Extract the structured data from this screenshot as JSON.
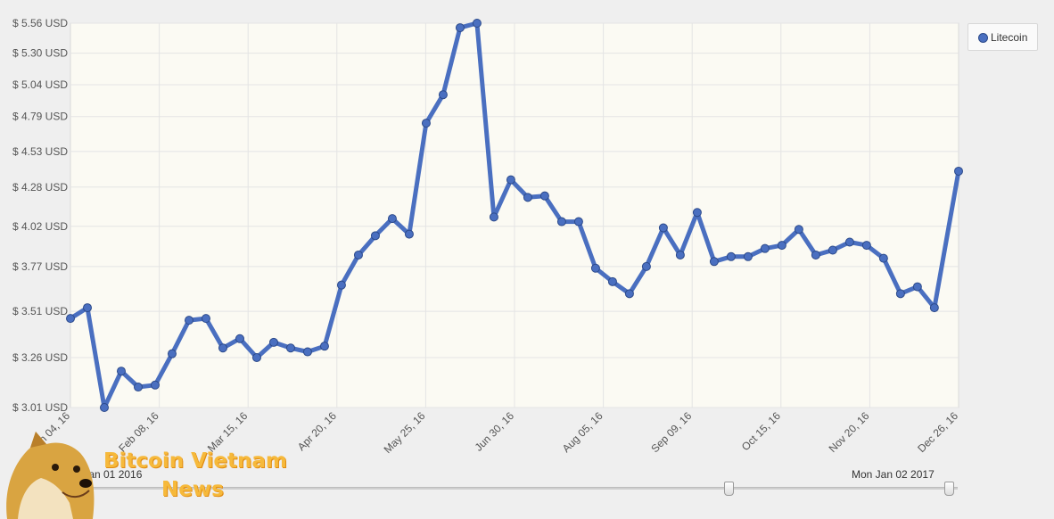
{
  "chart_data": {
    "type": "line",
    "x": [
      "2016-01-01",
      "2016-01-08",
      "2016-01-15",
      "2016-01-22",
      "2016-01-29",
      "2016-02-05",
      "2016-02-12",
      "2016-02-19",
      "2016-02-26",
      "2016-03-04",
      "2016-03-11",
      "2016-03-18",
      "2016-03-25",
      "2016-04-01",
      "2016-04-08",
      "2016-04-15",
      "2016-04-22",
      "2016-04-29",
      "2016-05-06",
      "2016-05-13",
      "2016-05-20",
      "2016-05-27",
      "2016-06-03",
      "2016-06-10",
      "2016-06-17",
      "2016-06-24",
      "2016-07-01",
      "2016-07-08",
      "2016-07-15",
      "2016-07-22",
      "2016-07-29",
      "2016-08-05",
      "2016-08-12",
      "2016-08-19",
      "2016-08-26",
      "2016-09-02",
      "2016-09-09",
      "2016-09-16",
      "2016-09-23",
      "2016-09-30",
      "2016-10-07",
      "2016-10-14",
      "2016-10-21",
      "2016-10-28",
      "2016-11-04",
      "2016-11-11",
      "2016-11-18",
      "2016-11-25",
      "2016-12-02",
      "2016-12-09",
      "2016-12-16",
      "2016-12-23",
      "2017-01-02"
    ],
    "series": [
      {
        "name": "Litecoin",
        "values": [
          3.47,
          3.53,
          3.01,
          3.19,
          3.11,
          3.12,
          3.28,
          3.46,
          3.47,
          3.31,
          3.36,
          3.26,
          3.34,
          3.31,
          3.29,
          3.32,
          3.66,
          3.84,
          3.96,
          4.07,
          3.97,
          4.74,
          4.96,
          5.52,
          5.56,
          4.08,
          4.33,
          4.21,
          4.22,
          4.05,
          4.05,
          3.76,
          3.68,
          3.61,
          3.77,
          4.01,
          3.84,
          4.11,
          3.8,
          3.83,
          3.83,
          3.88,
          3.9,
          4.0,
          3.84,
          3.87,
          3.92,
          3.9,
          3.82,
          3.61,
          3.65,
          3.53,
          4.39
        ]
      }
    ],
    "y_ticks": [
      "$ 3.01 USD",
      "$ 3.26 USD",
      "$ 3.51 USD",
      "$ 3.77 USD",
      "$ 4.02 USD",
      "$ 4.28 USD",
      "$ 4.53 USD",
      "$ 4.79 USD",
      "$ 5.04 USD",
      "$ 5.30 USD",
      "$ 5.56 USD"
    ],
    "x_ticks": [
      "Jan 04, 16",
      "Feb 08, 16",
      "Mar 15, 16",
      "Apr 20, 16",
      "May 25, 16",
      "Jun 30, 16",
      "Aug 05, 16",
      "Sep 09, 16",
      "Oct 15, 16",
      "Nov 20, 16",
      "Dec 26, 16"
    ],
    "ylim": [
      3.01,
      5.56
    ],
    "y_scale": "log",
    "grid": true,
    "legend": "top-right",
    "colors": {
      "line": "#4a6fc0",
      "marker_border": "#2c4a8a",
      "plot_bg": "#fbfaf3",
      "grid": "#e4e4e4"
    }
  },
  "legend": {
    "label": "Litecoin"
  },
  "range": {
    "start": "Fri Jan 01 2016",
    "end": "Mon Jan 02 2017"
  },
  "watermark": {
    "line1": "Bitcoin Vietnam",
    "line2": "News",
    "logo": "doge-dog-icon"
  }
}
